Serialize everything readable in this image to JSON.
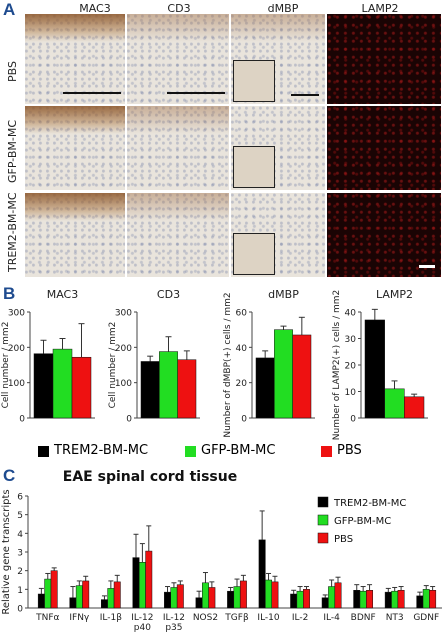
{
  "panels": {
    "a": "A",
    "b": "B",
    "c": "C"
  },
  "panel_a": {
    "columns": [
      "MAC3",
      "CD3",
      "dMBP",
      "LAMP2"
    ],
    "rows": [
      "PBS",
      "GFP-BM-MC",
      "TREM2-BM-MC"
    ]
  },
  "legend_b": {
    "items": [
      {
        "label": "TREM2-BM-MC",
        "color": "#000000"
      },
      {
        "label": "GFP-BM-MC",
        "color": "#22dd22"
      },
      {
        "label": "PBS",
        "color": "#ee1111"
      }
    ]
  },
  "chart_data": [
    {
      "type": "bar",
      "title": "MAC3",
      "ylabel": "Cell number / mm2",
      "ylim": [
        0,
        300
      ],
      "yticks": [
        0,
        100,
        200,
        300
      ],
      "series": [
        {
          "name": "TREM2-BM-MC",
          "values": [
            182
          ],
          "errors": [
            38
          ]
        },
        {
          "name": "GFP-BM-MC",
          "values": [
            195
          ],
          "errors": [
            30
          ]
        },
        {
          "name": "PBS",
          "values": [
            172
          ],
          "errors": [
            95
          ]
        }
      ]
    },
    {
      "type": "bar",
      "title": "CD3",
      "ylabel": "Cell number / mm2",
      "ylim": [
        0,
        300
      ],
      "yticks": [
        0,
        100,
        200,
        300
      ],
      "series": [
        {
          "name": "TREM2-BM-MC",
          "values": [
            160
          ],
          "errors": [
            15
          ]
        },
        {
          "name": "GFP-BM-MC",
          "values": [
            188
          ],
          "errors": [
            42
          ]
        },
        {
          "name": "PBS",
          "values": [
            165
          ],
          "errors": [
            25
          ]
        }
      ]
    },
    {
      "type": "bar",
      "title": "dMBP",
      "ylabel": "Number of dMBP(+) cells / mm2",
      "ylim": [
        0,
        60
      ],
      "yticks": [
        0,
        20,
        40,
        60
      ],
      "series": [
        {
          "name": "TREM2-BM-MC",
          "values": [
            34
          ],
          "errors": [
            4
          ]
        },
        {
          "name": "GFP-BM-MC",
          "values": [
            50
          ],
          "errors": [
            2
          ]
        },
        {
          "name": "PBS",
          "values": [
            47
          ],
          "errors": [
            10
          ]
        }
      ]
    },
    {
      "type": "bar",
      "title": "LAMP2",
      "ylabel": "Number of LAMP2(+) cells / mm2",
      "ylim": [
        0,
        40
      ],
      "yticks": [
        0,
        10,
        20,
        30,
        40
      ],
      "series": [
        {
          "name": "TREM2-BM-MC",
          "values": [
            37
          ],
          "errors": [
            4
          ]
        },
        {
          "name": "GFP-BM-MC",
          "values": [
            11
          ],
          "errors": [
            3
          ]
        },
        {
          "name": "PBS",
          "values": [
            8
          ],
          "errors": [
            1
          ]
        }
      ]
    },
    {
      "type": "bar",
      "title": "EAE spinal cord tissue",
      "ylabel": "Relative gene transcripts",
      "ylim": [
        0,
        6
      ],
      "yticks": [
        0,
        1,
        2,
        3,
        4,
        5,
        6
      ],
      "categories": [
        "TNFα",
        "IFNγ",
        "IL-1β",
        "IL-12 p40",
        "IL-12 p35",
        "NOS2",
        "TGFβ",
        "IL-10",
        "IL-2",
        "IL-4",
        "BDNF",
        "NT3",
        "GDNF"
      ],
      "category_lines": [
        [
          "TNFα"
        ],
        [
          "IFNγ"
        ],
        [
          "IL-1β"
        ],
        [
          "IL-12",
          "p40"
        ],
        [
          "IL-12",
          "p35"
        ],
        [
          "NOS2"
        ],
        [
          "TGFβ"
        ],
        [
          "IL-10"
        ],
        [
          "IL-2"
        ],
        [
          "IL-4"
        ],
        [
          "BDNF"
        ],
        [
          "NT3"
        ],
        [
          "GDNF"
        ]
      ],
      "series": [
        {
          "name": "TREM2-BM-MC",
          "values": [
            0.75,
            0.55,
            0.45,
            2.7,
            0.85,
            0.55,
            0.9,
            3.65,
            0.75,
            0.55,
            0.95,
            0.85,
            0.65
          ],
          "errors": [
            0.3,
            0.6,
            0.2,
            1.25,
            0.3,
            0.35,
            0.2,
            1.55,
            0.2,
            0.15,
            0.3,
            0.2,
            0.2
          ]
        },
        {
          "name": "GFP-BM-MC",
          "values": [
            1.55,
            1.2,
            1.05,
            2.45,
            1.1,
            1.35,
            1.15,
            1.5,
            0.9,
            1.15,
            0.9,
            0.9,
            1.0
          ],
          "errors": [
            0.3,
            0.25,
            0.4,
            1.0,
            0.25,
            0.55,
            0.4,
            0.35,
            0.25,
            0.35,
            0.25,
            0.2,
            0.2
          ]
        },
        {
          "name": "PBS",
          "values": [
            2.0,
            1.45,
            1.4,
            3.05,
            1.25,
            1.1,
            1.45,
            1.4,
            1.0,
            1.35,
            0.95,
            0.95,
            0.95
          ],
          "errors": [
            0.15,
            0.25,
            0.35,
            1.35,
            0.2,
            0.3,
            0.3,
            0.3,
            0.15,
            0.3,
            0.3,
            0.2,
            0.2
          ]
        }
      ]
    }
  ]
}
